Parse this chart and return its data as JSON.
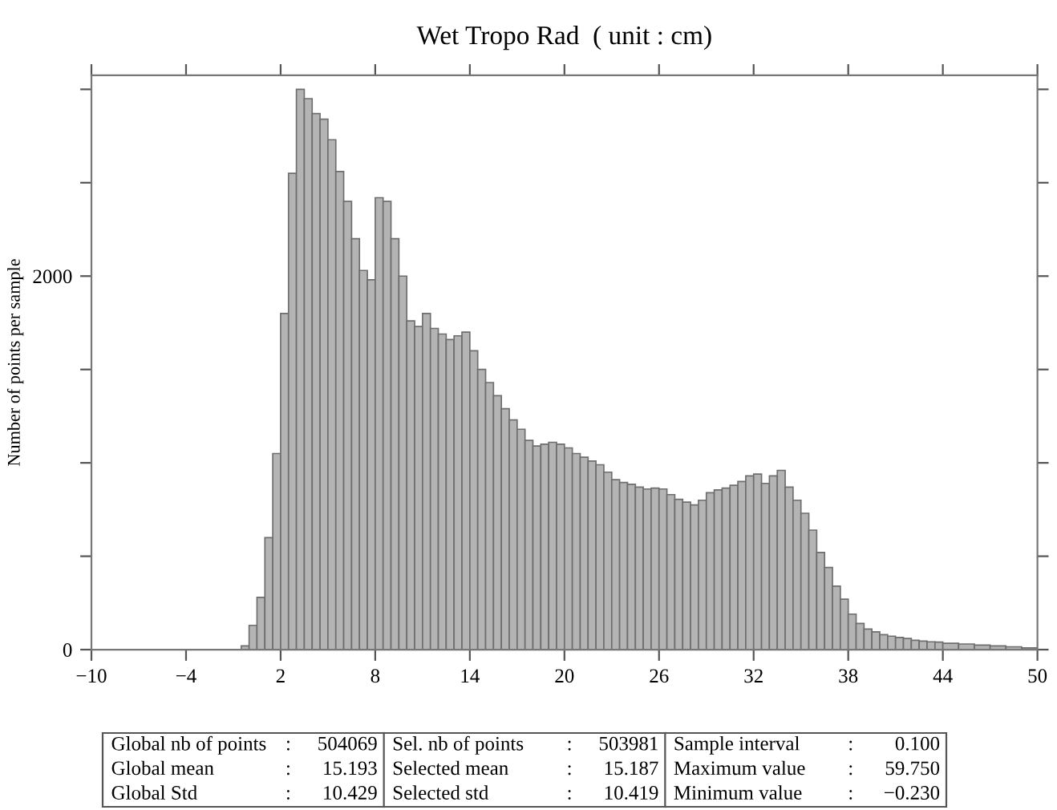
{
  "chart_data": {
    "type": "histogram",
    "title": "Wet Tropo Rad  ( unit : cm)",
    "ylabel": "Number of points per sample",
    "color": "#b4b4b4",
    "bins": [
      -0.5,
      0,
      0.5,
      1,
      1.5,
      2,
      2.5,
      3,
      3.5,
      4,
      4.5,
      5,
      5.5,
      6,
      6.5,
      7,
      7.5,
      8,
      8.5,
      9,
      9.5,
      10,
      10.5,
      11,
      11.5,
      12,
      12.5,
      13,
      13.5,
      14,
      14.5,
      15,
      15.5,
      16,
      16.5,
      17,
      17.5,
      18,
      18.5,
      19,
      19.5,
      20,
      20.5,
      21,
      21.5,
      22,
      22.5,
      23,
      23.5,
      24,
      24.5,
      25,
      25.5,
      26,
      26.5,
      27,
      27.5,
      28,
      28.5,
      29,
      29.5,
      30,
      30.5,
      31,
      31.5,
      32,
      32.5,
      33,
      33.5,
      34,
      34.5,
      35,
      35.5,
      36,
      36.5,
      37,
      37.5,
      38,
      38.5,
      39,
      39.5,
      40,
      40.5,
      41,
      41.5,
      42,
      42.5,
      43,
      43.5,
      44,
      45,
      46,
      47,
      48,
      49,
      50
    ],
    "values": [
      20,
      130,
      280,
      600,
      1050,
      1800,
      2550,
      3000,
      2950,
      2870,
      2840,
      2730,
      2560,
      2400,
      2200,
      2030,
      1980,
      2420,
      2400,
      2200,
      2000,
      1760,
      1730,
      1800,
      1720,
      1690,
      1660,
      1680,
      1700,
      1600,
      1500,
      1430,
      1360,
      1290,
      1230,
      1180,
      1120,
      1090,
      1100,
      1110,
      1100,
      1080,
      1050,
      1030,
      1010,
      990,
      950,
      910,
      895,
      885,
      870,
      860,
      865,
      860,
      830,
      805,
      790,
      775,
      800,
      840,
      855,
      865,
      880,
      900,
      930,
      940,
      890,
      930,
      960,
      870,
      800,
      730,
      640,
      520,
      440,
      340,
      270,
      190,
      140,
      110,
      95,
      80,
      72,
      65,
      60,
      50,
      46,
      42,
      40,
      34,
      30,
      24,
      20,
      15,
      9
    ],
    "xlim": [
      -10,
      50
    ],
    "xticks": [
      {
        "value": -10,
        "label": "−10"
      },
      {
        "value": -4,
        "label": "−4"
      },
      2,
      8,
      14,
      20,
      26,
      32,
      38,
      44,
      50
    ],
    "ylim": [
      0,
      3075
    ],
    "yticks": [
      0,
      {
        "value": 500,
        "label": null
      },
      {
        "value": 1000,
        "label": null
      },
      {
        "value": 1500,
        "label": null
      },
      2000,
      {
        "value": 2500,
        "label": null
      },
      {
        "value": 3000,
        "label": null
      }
    ],
    "grid": false,
    "annotations": [
      "Global nb of points : 504069",
      "Global mean : 15.193",
      "Global Std : 10.429",
      "Sel. nb of points : 503981",
      "Selected mean : 15.187",
      "Selected std : 10.419",
      "Sample interval : 0.100",
      "Maximum value : 59.750",
      "Minimum value : −0.230"
    ]
  }
}
